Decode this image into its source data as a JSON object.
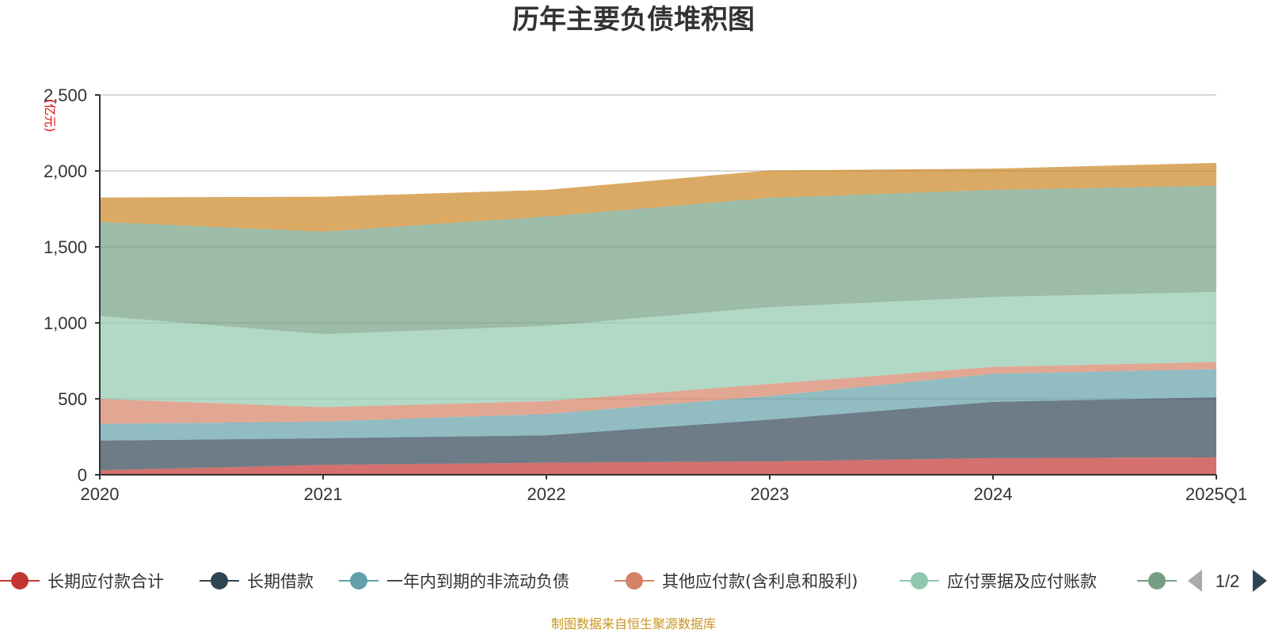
{
  "chart_data": {
    "type": "area",
    "stacked": true,
    "title": "历年主要负债堆积图",
    "unit_label": "(亿元)",
    "x": [
      "2020",
      "2021",
      "2022",
      "2023",
      "2024",
      "2025Q1"
    ],
    "ylim": [
      0,
      2500
    ],
    "yticks": [
      "0",
      "500",
      "1,000",
      "1,500",
      "2,000",
      "2,500"
    ],
    "ytick_values": [
      0,
      500,
      1000,
      1500,
      2000,
      2500
    ],
    "grid": true,
    "series": [
      {
        "name": "长期应付款合计",
        "color": "#c23531",
        "values": [
          30,
          65,
          80,
          88,
          110,
          115
        ]
      },
      {
        "name": "长期借款",
        "color": "#2f4554",
        "values": [
          195,
          175,
          180,
          275,
          370,
          395
        ]
      },
      {
        "name": "一年内到期的非流动负债",
        "color": "#61a0a8",
        "values": [
          110,
          110,
          140,
          155,
          185,
          185
        ]
      },
      {
        "name": "其他应付款(含利息和股利)",
        "color": "#d48265",
        "values": [
          165,
          95,
          85,
          80,
          45,
          48
        ]
      },
      {
        "name": "应付票据及应付账款",
        "color": "#91c7ae",
        "values": [
          545,
          480,
          495,
          505,
          460,
          460
        ]
      },
      {
        "name": "",
        "color": "#749f83",
        "values": [
          620,
          675,
          720,
          720,
          705,
          700
        ]
      },
      {
        "name": "",
        "color": "#ca8622",
        "values": [
          160,
          230,
          175,
          180,
          140,
          150
        ]
      }
    ]
  },
  "legend": {
    "items": [
      {
        "label": "长期应付款合计",
        "color": "#c23531"
      },
      {
        "label": "长期借款",
        "color": "#2f4554"
      },
      {
        "label": "一年内到期的非流动负债",
        "color": "#61a0a8"
      },
      {
        "label": "其他应付款(含利息和股利)",
        "color": "#d48265"
      },
      {
        "label": "应付票据及应付账款",
        "color": "#91c7ae"
      },
      {
        "label": "",
        "color": "#749f83"
      }
    ],
    "page": "1/2",
    "prev_icon": "triangle-left-icon",
    "next_icon": "triangle-right-icon"
  },
  "footer": {
    "source": "制图数据来自恒生聚源数据库"
  }
}
